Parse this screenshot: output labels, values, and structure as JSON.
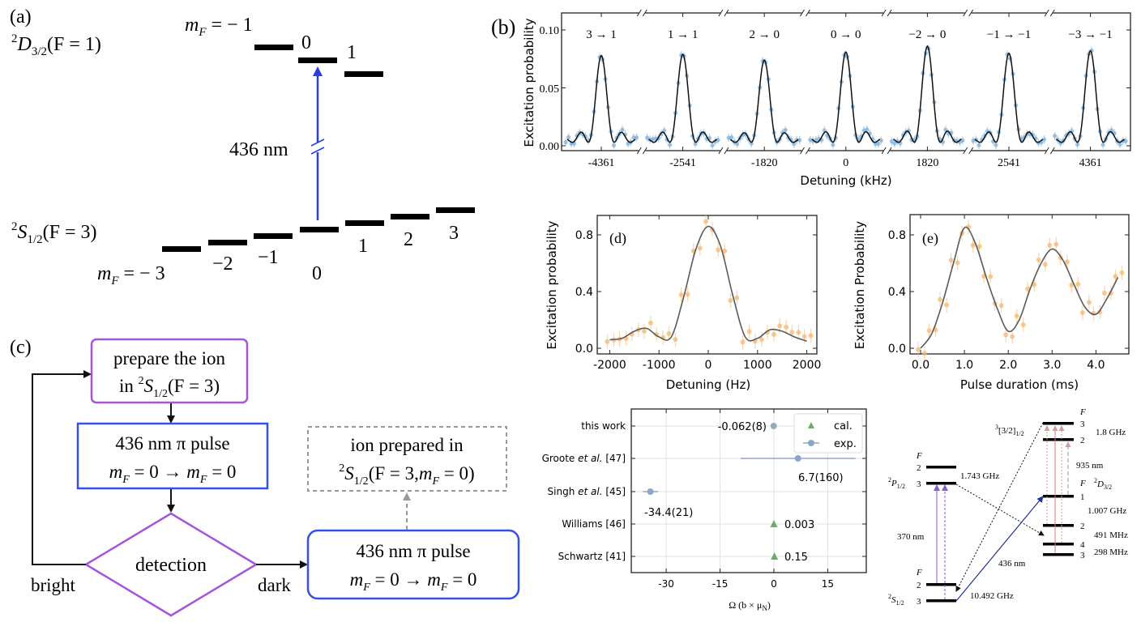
{
  "panel_a": {
    "label": "(a)",
    "upper_state": {
      "sup": "2",
      "main": "D",
      "sub": "3/2",
      "rest": "(F = 1)"
    },
    "lower_state": {
      "sup": "2",
      "main": "S",
      "sub": "1/2",
      "rest": "(F = 3)"
    },
    "mf_symbol": "m",
    "mf_sub": "F",
    "upper_first": " = − 1",
    "upper_levels": [
      "0",
      "1"
    ],
    "lower_first": " = − 3",
    "lower_levels": [
      "−2",
      "−1",
      "0",
      "1",
      "2",
      "3"
    ],
    "wavelength": "436 nm",
    "laser_color": "#2b3fe0"
  },
  "panel_c": {
    "label": "(c)",
    "prepare_line1": "prepare the ion",
    "prepare_line2": {
      "pre": "in ",
      "sup": "2",
      "main": "S",
      "sub": "1/2",
      "rest": "(F = 3)"
    },
    "pulse_line1": "436 nm π pulse",
    "pulse_line2": {
      "m": "m",
      "sub": "F",
      "mid": " = 0 → ",
      "m2": "m",
      "sub2": "F",
      "end": " = 0"
    },
    "detection": "detection",
    "bright": "bright",
    "dark": "dark",
    "prepared_line1": "ion prepared in",
    "prepared_line2": {
      "sup": "2",
      "main": "S",
      "sub": "1/2",
      "rest": "(F = 3,",
      "m": "m",
      "msub": "F",
      "end": " = 0)"
    },
    "colors": {
      "purple": "#a455d8",
      "blue": "#3550e6",
      "gray": "#999999"
    }
  },
  "chart_data": [
    {
      "panel": "(b)",
      "type": "line",
      "ylabel": "Excitation probability",
      "xlabel": "Detuning (kHz)",
      "ylim": [
        0,
        0.115
      ],
      "yticks": [
        "0.00",
        "0.05",
        "0.10"
      ],
      "broken_x_axis": true,
      "categories": [
        "-4361",
        "-2541",
        "-1820",
        "0",
        "1820",
        "2541",
        "4361"
      ],
      "series": [
        {
          "name": "3 → 1",
          "center": -4361,
          "peak": 0.075
        },
        {
          "name": "1 → 1",
          "center": -2541,
          "peak": 0.076
        },
        {
          "name": "2 → 0",
          "center": -1820,
          "peak": 0.071
        },
        {
          "name": "0 → 0",
          "center": 0,
          "peak": 0.078
        },
        {
          "name": "−2 → 0",
          "center": 1820,
          "peak": 0.083
        },
        {
          "name": "−1 → −1",
          "center": 2541,
          "peak": 0.077
        },
        {
          "name": "−3 → −1",
          "center": 4361,
          "peak": 0.079
        }
      ],
      "colors": {
        "points": "#7eb0d9",
        "fit": "#111111"
      }
    },
    {
      "panel": "(d)",
      "type": "scatter",
      "xlabel": "Detuning (Hz)",
      "ylabel": "Excitation probability",
      "xlim": [
        -2100,
        2050
      ],
      "ylim": [
        -0.04,
        0.93
      ],
      "xticks": [
        "-2000",
        "-1000",
        "0",
        "1000",
        "2000"
      ],
      "yticks": [
        "0.0",
        "0.4",
        "0.8"
      ],
      "x": [
        -2000,
        -1750,
        -1500,
        -1250,
        -1000,
        -750,
        -500,
        -250,
        0,
        250,
        500,
        750,
        1000,
        1250,
        1500,
        1750,
        2000
      ],
      "y": [
        0.06,
        0.07,
        0.12,
        0.14,
        0.08,
        0.08,
        0.36,
        0.7,
        0.86,
        0.72,
        0.37,
        0.08,
        0.07,
        0.13,
        0.12,
        0.08,
        0.05
      ],
      "colors": {
        "points": "#f5b36c",
        "fit": "#5a5a5a"
      }
    },
    {
      "panel": "(e)",
      "type": "scatter",
      "xlabel": "Pulse duration (ms)",
      "ylabel": "Excitation Probability",
      "xlim": [
        -0.2,
        4.8
      ],
      "ylim": [
        -0.04,
        0.93
      ],
      "xticks": [
        "0.0",
        "1.0",
        "2.0",
        "3.0",
        "4.0"
      ],
      "yticks": [
        "0.0",
        "0.4",
        "0.8"
      ],
      "x": [
        0,
        0.25,
        0.5,
        0.75,
        1.0,
        1.25,
        1.5,
        1.75,
        2.0,
        2.25,
        2.5,
        2.75,
        3.0,
        3.25,
        3.5,
        3.75,
        4.0,
        4.25,
        4.5
      ],
      "y": [
        0.0,
        0.1,
        0.32,
        0.6,
        0.85,
        0.74,
        0.5,
        0.28,
        0.12,
        0.2,
        0.42,
        0.6,
        0.7,
        0.62,
        0.45,
        0.29,
        0.24,
        0.35,
        0.5
      ],
      "colors": {
        "points": "#f5b36c",
        "fit": "#5a5a5a"
      }
    },
    {
      "panel": "comparison",
      "type": "scatter",
      "xlabel": {
        "main": "Ω (b × μ",
        "sub": "N",
        "end": ")"
      },
      "xlim": [
        -39,
        26
      ],
      "xticks": [
        "-30",
        "-15",
        "0",
        "15"
      ],
      "grid": true,
      "legend_position": "top-right",
      "legend": [
        {
          "name": "cal.",
          "marker": "triangle",
          "color": "#6fa86f"
        },
        {
          "name": "exp.",
          "marker": "circle",
          "color": "#8ea4c8"
        }
      ],
      "rows": [
        {
          "label": "this work",
          "italic": "",
          "ref": "",
          "kind": "exp.",
          "value": -0.062,
          "error": 0.008,
          "text": "-0.062(8)"
        },
        {
          "label": "Groote ",
          "italic": "et al.",
          "ref": " [47]",
          "kind": "exp.",
          "value": 6.7,
          "error": 16.0,
          "text": "6.7(160)"
        },
        {
          "label": "Singh ",
          "italic": "et al.",
          "ref": " [45]",
          "kind": "exp.",
          "value": -34.4,
          "error": 2.1,
          "text": "-34.4(21)"
        },
        {
          "label": "Williams [46]",
          "italic": "",
          "ref": "",
          "kind": "cal.",
          "value": 0.003,
          "error": 0,
          "text": "0.003"
        },
        {
          "label": "Schwartz [41]",
          "italic": "",
          "ref": "",
          "kind": "cal.",
          "value": 0.15,
          "error": 0,
          "text": "0.15"
        }
      ]
    }
  ],
  "level_diagram": {
    "F": "F",
    "p_state": {
      "sup": "2",
      "main": "P",
      "sub": "1/2"
    },
    "s_state": {
      "sup": "2",
      "main": "S",
      "sub": "1/2"
    },
    "d_state": {
      "sup": "2",
      "main": "D",
      "sub": "3/2"
    },
    "b_state": {
      "sup": "3",
      "main": "[3/2]",
      "sub": "1/2"
    },
    "p_levels": [
      "2",
      "3"
    ],
    "s_levels": [
      "2",
      "3"
    ],
    "d_levels": [
      "1",
      "2",
      "4",
      "3"
    ],
    "b_levels": [
      "3",
      "2"
    ],
    "splittings": {
      "p": "1.743 GHz",
      "s": "10.492 GHz",
      "d1": "1.007 GHz",
      "d2": "491 MHz",
      "d3": "298 MHz",
      "b": "1.8 GHz"
    },
    "wavelengths": {
      "uv": "370 nm",
      "clock": "436 nm",
      "repump": "935 nm"
    }
  }
}
